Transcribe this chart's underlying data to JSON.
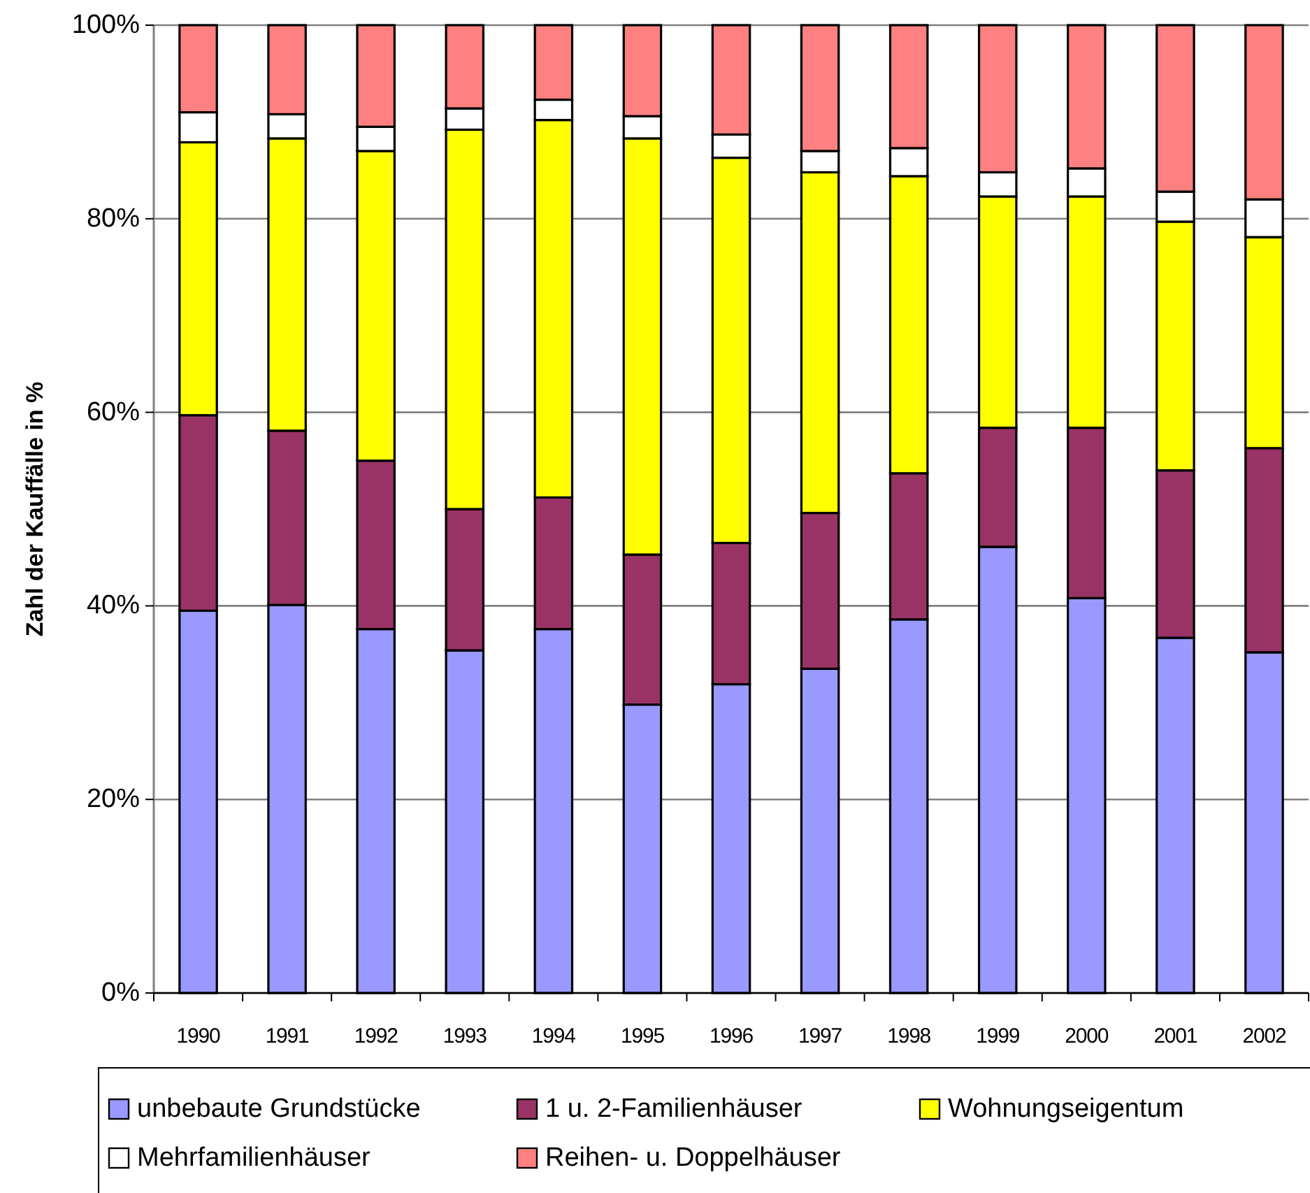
{
  "chart_data": {
    "type": "bar",
    "stacked": true,
    "ylabel": "Zahl der Kauffälle in %",
    "categories": [
      "1990",
      "1991",
      "1992",
      "1993",
      "1994",
      "1995",
      "1996",
      "1997",
      "1998",
      "1999",
      "2000",
      "2001",
      "2002"
    ],
    "series": [
      {
        "name": "unbebaute Grundstücke",
        "color": "#9999ff",
        "values": [
          39.5,
          40.1,
          37.6,
          35.4,
          37.6,
          29.8,
          31.9,
          33.5,
          38.6,
          46.1,
          40.8,
          36.7,
          35.2
        ]
      },
      {
        "name": "1 u. 2-Familienhäuser",
        "color": "#993366",
        "values": [
          20.2,
          18.0,
          17.4,
          14.6,
          13.6,
          15.5,
          14.6,
          16.1,
          15.1,
          12.3,
          17.6,
          17.3,
          21.1
        ]
      },
      {
        "name": "Wohnungseigentum",
        "color": "#ffff00",
        "values": [
          28.2,
          30.2,
          32.0,
          39.2,
          39.0,
          43.0,
          39.8,
          35.2,
          30.7,
          23.9,
          23.9,
          25.7,
          21.8
        ]
      },
      {
        "name": "Mehrfamilienhäuser",
        "color": "#ffffff",
        "values": [
          3.1,
          2.5,
          2.5,
          2.2,
          2.1,
          2.3,
          2.4,
          2.2,
          2.9,
          2.5,
          2.9,
          3.1,
          3.9
        ]
      },
      {
        "name": "Reihen- u. Doppelhäuser",
        "color": "#ff8080",
        "values": [
          9.0,
          9.2,
          10.5,
          8.6,
          7.7,
          9.4,
          11.3,
          13.0,
          12.7,
          15.2,
          14.8,
          17.2,
          18.0
        ]
      }
    ],
    "ylim": [
      0,
      100
    ],
    "yticks": [
      {
        "value": 0,
        "label": "0%"
      },
      {
        "value": 20,
        "label": "20%"
      },
      {
        "value": 40,
        "label": "40%"
      },
      {
        "value": 60,
        "label": "60%"
      },
      {
        "value": 80,
        "label": "80%"
      },
      {
        "value": 100,
        "label": "100%"
      }
    ],
    "grid": "y",
    "legend": "bottom"
  }
}
